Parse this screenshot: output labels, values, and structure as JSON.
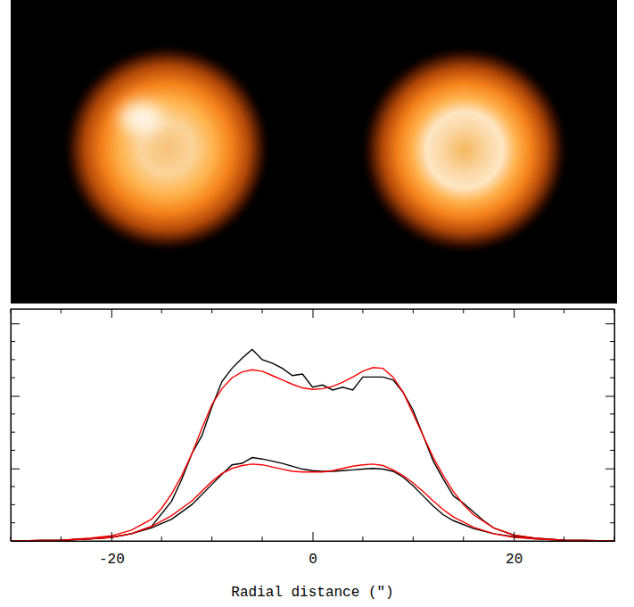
{
  "chart_data": {
    "type": "line",
    "x_label": "Radial distance (″)",
    "xlim": [
      -30,
      30
    ],
    "xticks": [
      -20,
      0,
      20
    ],
    "x_minor_ticks": [
      -30,
      -25,
      -15,
      -10,
      -5,
      5,
      10,
      15,
      25,
      30
    ],
    "ylim": [
      0,
      3.2
    ],
    "yticks": [
      0,
      1,
      2,
      3
    ],
    "y_minor_ticks": [
      0.25,
      0.5,
      0.75,
      1.25,
      1.5,
      1.75,
      2.25,
      2.5,
      2.75
    ],
    "tick_labels": "x",
    "series": [
      {
        "color": "#000000",
        "x": [
          -30,
          -25,
          -22,
          -20,
          -18,
          -16,
          -14,
          -13,
          -12,
          -11,
          -10,
          -9,
          -8,
          -7,
          -6,
          -5,
          -4,
          -3,
          -2,
          -1,
          0,
          1,
          2,
          3,
          4,
          5,
          6,
          7,
          8,
          9,
          10,
          11,
          12,
          13,
          14,
          15,
          16,
          17,
          18,
          20,
          22,
          25,
          30
        ],
        "values": [
          0,
          0.01,
          0.03,
          0.05,
          0.1,
          0.2,
          0.55,
          0.85,
          1.2,
          1.45,
          1.85,
          2.2,
          2.38,
          2.52,
          2.64,
          2.5,
          2.45,
          2.38,
          2.28,
          2.3,
          2.12,
          2.15,
          2.08,
          2.12,
          2.08,
          2.26,
          2.26,
          2.26,
          2.22,
          2.05,
          1.8,
          1.45,
          1.1,
          0.85,
          0.62,
          0.52,
          0.4,
          0.28,
          0.18,
          0.08,
          0.04,
          0.01,
          0
        ]
      },
      {
        "color": "#ff0000",
        "x": [
          -30,
          -25,
          -22,
          -20,
          -18,
          -16,
          -15,
          -14,
          -13,
          -12,
          -11,
          -10,
          -9,
          -8,
          -7,
          -6,
          -5,
          -4,
          -3,
          -2,
          -1,
          0,
          1,
          2,
          3,
          4,
          5,
          6,
          7,
          8,
          9,
          10,
          11,
          12,
          13,
          14,
          15,
          16,
          18,
          20,
          22,
          25,
          30
        ],
        "values": [
          0,
          0.01,
          0.04,
          0.07,
          0.15,
          0.3,
          0.45,
          0.65,
          0.9,
          1.2,
          1.55,
          1.88,
          2.1,
          2.25,
          2.33,
          2.36,
          2.34,
          2.28,
          2.22,
          2.16,
          2.11,
          2.09,
          2.1,
          2.13,
          2.19,
          2.26,
          2.34,
          2.39,
          2.38,
          2.26,
          2.05,
          1.75,
          1.45,
          1.15,
          0.9,
          0.68,
          0.5,
          0.36,
          0.18,
          0.08,
          0.04,
          0.01,
          0
        ]
      },
      {
        "color": "#000000",
        "x": [
          -30,
          -25,
          -22,
          -20,
          -18,
          -16,
          -14,
          -12,
          -10,
          -9,
          -8,
          -7,
          -6,
          -5,
          -4,
          -3,
          -2,
          -1,
          0,
          1,
          2,
          3,
          4,
          5,
          6,
          7,
          8,
          9,
          10,
          11,
          12,
          13,
          14,
          16,
          18,
          20,
          22,
          25,
          30
        ],
        "values": [
          0,
          0.01,
          0.03,
          0.05,
          0.1,
          0.18,
          0.3,
          0.5,
          0.78,
          0.92,
          1.05,
          1.07,
          1.15,
          1.13,
          1.1,
          1.07,
          1.03,
          0.99,
          0.97,
          0.96,
          0.96,
          0.97,
          0.98,
          0.99,
          1.0,
          0.99,
          0.96,
          0.88,
          0.76,
          0.62,
          0.48,
          0.36,
          0.28,
          0.17,
          0.1,
          0.06,
          0.03,
          0.01,
          0
        ]
      },
      {
        "color": "#ff0000",
        "x": [
          -30,
          -25,
          -22,
          -20,
          -18,
          -16,
          -14,
          -12,
          -10,
          -9,
          -8,
          -7,
          -6,
          -5,
          -4,
          -3,
          -2,
          -1,
          0,
          1,
          2,
          3,
          4,
          5,
          6,
          7,
          8,
          9,
          10,
          11,
          12,
          13,
          14,
          16,
          18,
          20,
          22,
          25,
          30
        ],
        "values": [
          0,
          0.01,
          0.03,
          0.05,
          0.1,
          0.2,
          0.35,
          0.55,
          0.82,
          0.93,
          1.0,
          1.04,
          1.06,
          1.05,
          1.02,
          0.99,
          0.96,
          0.95,
          0.95,
          0.95,
          0.97,
          1.0,
          1.03,
          1.05,
          1.06,
          1.04,
          0.98,
          0.9,
          0.8,
          0.68,
          0.55,
          0.43,
          0.33,
          0.19,
          0.1,
          0.05,
          0.03,
          0.01,
          0
        ]
      }
    ]
  }
}
